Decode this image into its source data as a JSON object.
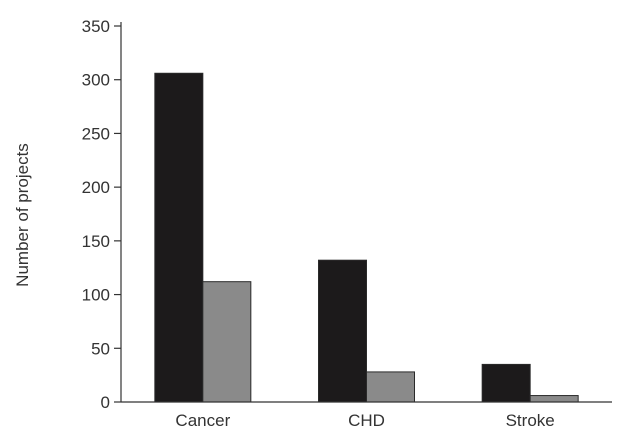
{
  "chart_data": {
    "type": "bar",
    "categories": [
      "Cancer",
      "CHD",
      "Stroke"
    ],
    "series": [
      {
        "values": [
          306,
          132,
          35
        ],
        "color": "#1c1a1b"
      },
      {
        "values": [
          112,
          28,
          6
        ],
        "color": "#8a8a8a"
      }
    ],
    "xlabel": "",
    "ylabel": "Number of projects",
    "ylim": [
      0,
      350
    ],
    "yticks": [
      0,
      50,
      100,
      150,
      200,
      250,
      300,
      350
    ],
    "grid": false
  }
}
